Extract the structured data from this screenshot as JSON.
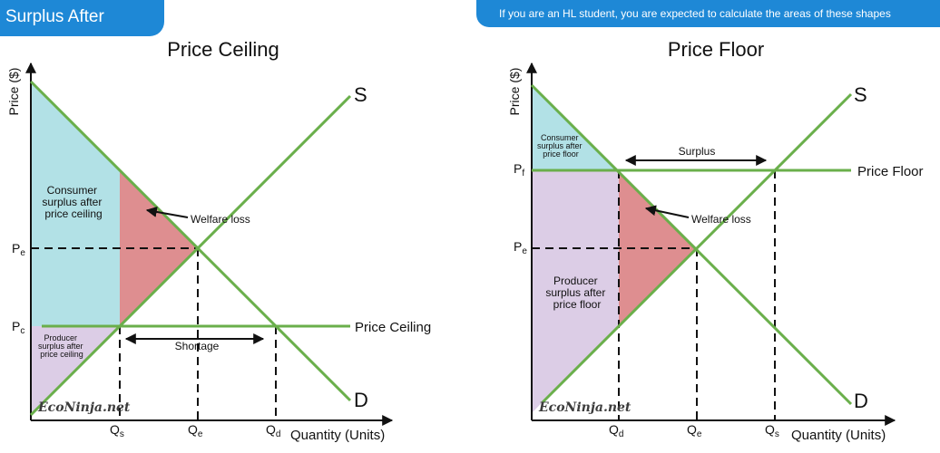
{
  "header": {
    "left_tab": "Surplus After",
    "right_note": "If you are an HL student, you are expected to calculate the areas of these shapes"
  },
  "colors": {
    "tab_blue": "#1e88d6",
    "curve_green": "#6aaf4b",
    "consumer_surplus": "#b2e1e6",
    "producer_surplus": "#dccde6",
    "welfare_loss": "#de8e90"
  },
  "watermark": "EcoNinja.net",
  "ceiling": {
    "title": "Price Ceiling",
    "y_axis_label": "Price ($)",
    "x_axis_label": "Quantity (Units)",
    "supply_label": "S",
    "demand_label": "D",
    "policy_line_label": "Price Ceiling",
    "pe_label": "P",
    "pe_sub": "e",
    "pc_label": "P",
    "pc_sub": "c",
    "qs_label": "Q",
    "qs_sub": "s",
    "qe_label": "Q",
    "qe_sub": "e",
    "qd_label": "Q",
    "qd_sub": "d",
    "consumer_surplus_text": [
      "Consumer",
      "surplus after",
      "price ceiling"
    ],
    "producer_surplus_text": [
      "Producer",
      "surplus after",
      "price ceiling"
    ],
    "welfare_loss_label": "Welfare loss",
    "gap_label": "Shortage"
  },
  "floor": {
    "title": "Price Floor",
    "y_axis_label": "Price ($)",
    "x_axis_label": "Quantity (Units)",
    "supply_label": "S",
    "demand_label": "D",
    "policy_line_label": "Price Floor",
    "pf_label": "P",
    "pf_sub": "f",
    "pe_label": "P",
    "pe_sub": "e",
    "qd_label": "Q",
    "qd_sub": "d",
    "qe_label": "Q",
    "qe_sub": "e",
    "qs_label": "Q",
    "qs_sub": "s",
    "consumer_surplus_text": [
      "Consumer",
      "surplus after",
      "price floor"
    ],
    "producer_surplus_text": [
      "Producer",
      "surplus after",
      "price floor"
    ],
    "welfare_loss_label": "Welfare loss",
    "gap_label": "Surplus"
  }
}
